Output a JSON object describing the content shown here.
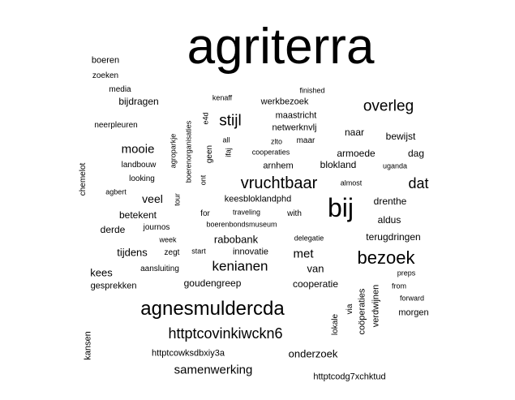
{
  "word_cloud": {
    "words": [
      {
        "key": "agriterra",
        "text": "agriterra"
      },
      {
        "key": "bij",
        "text": "bij"
      },
      {
        "key": "agnesmuldercda",
        "text": "agnesmuldercda"
      },
      {
        "key": "httptcovinkiwckn6",
        "text": "httptcovinkiwckn6"
      },
      {
        "key": "vruchtbaar",
        "text": "vruchtbaar"
      },
      {
        "key": "bezoek",
        "text": "bezoek"
      },
      {
        "key": "overleg",
        "text": "overleg"
      },
      {
        "key": "stijl",
        "text": "stijl"
      },
      {
        "key": "kenianen",
        "text": "kenianen"
      },
      {
        "key": "dat",
        "text": "dat"
      },
      {
        "key": "samenwerking",
        "text": "samenwerking"
      },
      {
        "key": "mooie",
        "text": "mooie"
      },
      {
        "key": "veel",
        "text": "veel"
      },
      {
        "key": "rabobank",
        "text": "rabobank"
      },
      {
        "key": "met",
        "text": "met"
      },
      {
        "key": "van",
        "text": "van"
      },
      {
        "key": "onderzoek",
        "text": "onderzoek"
      },
      {
        "key": "cooperatie",
        "text": "cooperatie"
      },
      {
        "key": "goudengreep",
        "text": "goudengreep"
      },
      {
        "key": "tijdens",
        "text": "tijdens"
      },
      {
        "key": "kees",
        "text": "kees"
      },
      {
        "key": "derde",
        "text": "derde"
      },
      {
        "key": "betekent",
        "text": "betekent"
      },
      {
        "key": "terugdringen",
        "text": "terugdringen"
      },
      {
        "key": "aldus",
        "text": "aldus"
      },
      {
        "key": "drenthe",
        "text": "drenthe"
      },
      {
        "key": "armoede",
        "text": "armoede"
      },
      {
        "key": "blokland",
        "text": "blokland"
      },
      {
        "key": "arnhem",
        "text": "arnhem"
      },
      {
        "key": "dag",
        "text": "dag"
      },
      {
        "key": "bewijst",
        "text": "bewijst"
      },
      {
        "key": "naar",
        "text": "naar"
      },
      {
        "key": "maastricht",
        "text": "maastricht"
      },
      {
        "key": "netwerknvlj",
        "text": "netwerknvlj"
      },
      {
        "key": "werkbezoek",
        "text": "werkbezoek"
      },
      {
        "key": "bijdragen",
        "text": "bijdragen"
      },
      {
        "key": "gesprekken",
        "text": "gesprekken"
      },
      {
        "key": "httptcowksdbxiy3a",
        "text": "httptcowksdbxiy3a"
      },
      {
        "key": "httptcodg7xchktud",
        "text": "httptcodg7xchktud"
      },
      {
        "key": "keesbloklandphd",
        "text": "keesbloklandphd"
      },
      {
        "key": "innovatie",
        "text": "innovatie"
      },
      {
        "key": "morgen",
        "text": "morgen"
      },
      {
        "key": "boeren",
        "text": "boeren"
      },
      {
        "key": "zoeken",
        "text": "zoeken"
      },
      {
        "key": "media",
        "text": "media"
      },
      {
        "key": "neerpleuren",
        "text": "neerpleuren"
      },
      {
        "key": "landbouw",
        "text": "landbouw"
      },
      {
        "key": "looking",
        "text": "looking"
      },
      {
        "key": "agbert",
        "text": "agbert"
      },
      {
        "key": "journos",
        "text": "journos"
      },
      {
        "key": "week",
        "text": "week"
      },
      {
        "key": "zegt",
        "text": "zegt"
      },
      {
        "key": "aansluiting",
        "text": "aansluiting"
      },
      {
        "key": "start",
        "text": "start"
      },
      {
        "key": "delegatie",
        "text": "delegatie"
      },
      {
        "key": "boerenbondsmuseum",
        "text": "boerenbondsmuseum"
      },
      {
        "key": "for",
        "text": "for"
      },
      {
        "key": "traveling",
        "text": "traveling"
      },
      {
        "key": "with",
        "text": "with"
      },
      {
        "key": "kenaff",
        "text": "kenaff"
      },
      {
        "key": "finished",
        "text": "finished"
      },
      {
        "key": "all",
        "text": "all"
      },
      {
        "key": "zlto",
        "text": "zlto"
      },
      {
        "key": "maar",
        "text": "maar"
      },
      {
        "key": "cooperaties",
        "text": "cooperaties"
      },
      {
        "key": "almost",
        "text": "almost"
      },
      {
        "key": "uganda",
        "text": "uganda"
      },
      {
        "key": "preps",
        "text": "preps"
      },
      {
        "key": "from",
        "text": "from"
      },
      {
        "key": "forward",
        "text": "forward"
      },
      {
        "key": "chemelot",
        "text": "chemelot"
      },
      {
        "key": "agroparkje",
        "text": "agroparkje"
      },
      {
        "key": "boerenorganisaties",
        "text": "boerenorganisaties"
      },
      {
        "key": "e4d",
        "text": "e4d"
      },
      {
        "key": "geen",
        "text": "geen"
      },
      {
        "key": "ifaj",
        "text": "ifaj"
      },
      {
        "key": "ont",
        "text": "ont"
      },
      {
        "key": "tour",
        "text": "tour"
      },
      {
        "key": "kansen",
        "text": "kansen"
      },
      {
        "key": "lokale",
        "text": "lokale"
      },
      {
        "key": "via",
        "text": "via"
      },
      {
        "key": "cooperaties_v",
        "text": "coöperaties"
      },
      {
        "key": "verdwijnen",
        "text": "verdwijnen"
      }
    ]
  }
}
